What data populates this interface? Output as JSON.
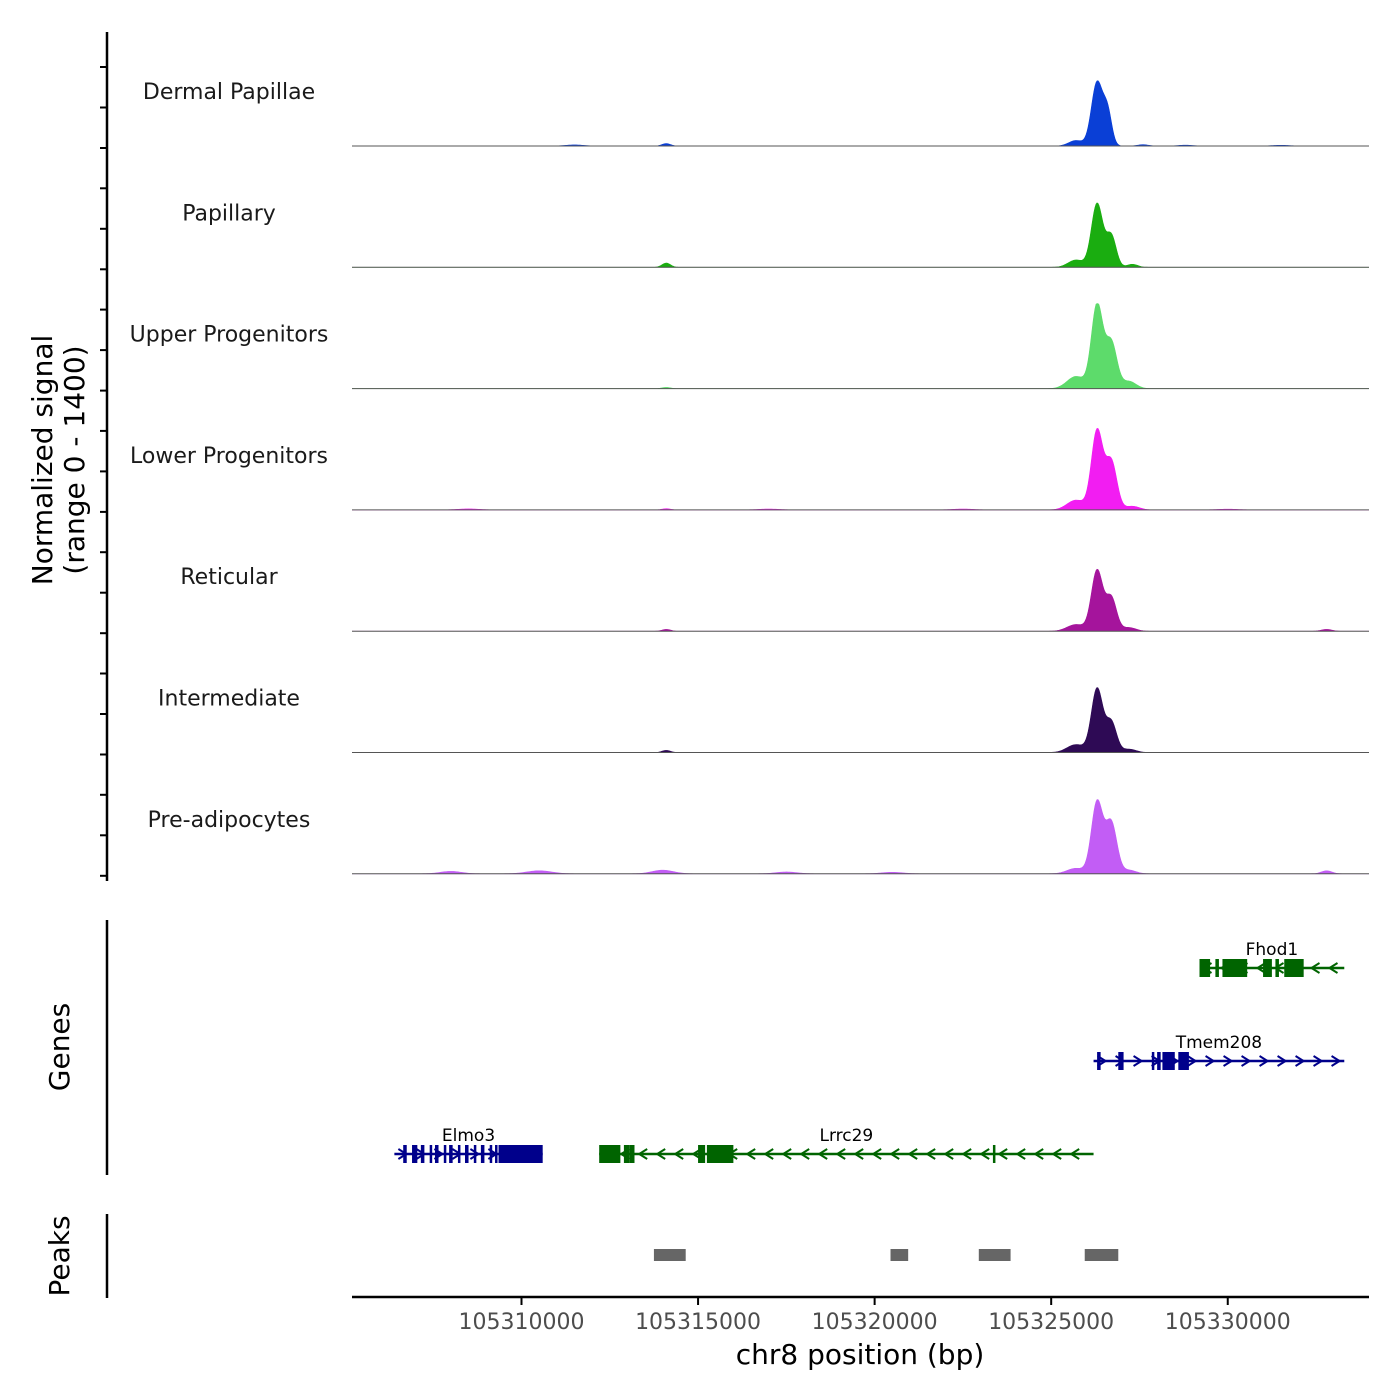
{
  "chart_data": {
    "type": "area",
    "title": "",
    "xlabel": "chr8 position (bp)",
    "xlim": [
      105305200,
      105334000
    ],
    "x_ticks": [
      105310000,
      105315000,
      105320000,
      105325000,
      105330000
    ],
    "x_tick_labels": [
      "105310000",
      "105315000",
      "105320000",
      "105325000",
      "105330000"
    ],
    "coverage": {
      "ylabel_line1": "Normalized signal",
      "ylabel_line2": "(range 0 - 1400)",
      "ylim": [
        0,
        1400
      ],
      "tracks": [
        {
          "name": "Dermal Papillae",
          "color": "#0a3fd6",
          "peaks": [
            [
              105326300,
              1050,
              160
            ],
            [
              105326600,
              520,
              120
            ],
            [
              105325700,
              90,
              200
            ],
            [
              105314100,
              40,
              120
            ],
            [
              105311500,
              18,
              250
            ],
            [
              105327600,
              22,
              150
            ],
            [
              105328800,
              14,
              200
            ],
            [
              105331500,
              12,
              250
            ]
          ]
        },
        {
          "name": "Papillary",
          "color": "#1aad10",
          "peaks": [
            [
              105326300,
              1050,
              160
            ],
            [
              105326700,
              520,
              140
            ],
            [
              105325700,
              120,
              220
            ],
            [
              105327300,
              50,
              150
            ],
            [
              105314100,
              70,
              120
            ]
          ]
        },
        {
          "name": "Upper Progenitors",
          "color": "#5ddb6b",
          "peaks": [
            [
              105326300,
              1380,
              160
            ],
            [
              105326700,
              760,
              160
            ],
            [
              105325700,
              200,
              250
            ],
            [
              105327200,
              120,
              200
            ],
            [
              105314100,
              20,
              120
            ]
          ]
        },
        {
          "name": "Lower Progenitors",
          "color": "#f21df2",
          "peaks": [
            [
              105326300,
              1300,
              160
            ],
            [
              105326700,
              800,
              160
            ],
            [
              105325700,
              160,
              250
            ],
            [
              105327300,
              60,
              200
            ],
            [
              105314100,
              20,
              120
            ],
            [
              105308500,
              16,
              300
            ],
            [
              105317000,
              14,
              300
            ],
            [
              105322500,
              14,
              300
            ],
            [
              105330000,
              12,
              300
            ]
          ]
        },
        {
          "name": "Reticular",
          "color": "#a5149c",
          "peaks": [
            [
              105326300,
              1000,
              160
            ],
            [
              105326700,
              550,
              150
            ],
            [
              105325700,
              110,
              250
            ],
            [
              105327200,
              60,
              200
            ],
            [
              105314100,
              30,
              120
            ],
            [
              105332800,
              30,
              150
            ]
          ]
        },
        {
          "name": "Intermediate",
          "color": "#2e0a55",
          "peaks": [
            [
              105326300,
              1050,
              160
            ],
            [
              105326700,
              500,
              150
            ],
            [
              105325700,
              130,
              250
            ],
            [
              105327200,
              55,
              200
            ],
            [
              105314100,
              35,
              120
            ]
          ]
        },
        {
          "name": "Pre-adipocytes",
          "color": "#c25df5",
          "peaks": [
            [
              105326300,
              1180,
              160
            ],
            [
              105326700,
              840,
              160
            ],
            [
              105325700,
              90,
              250
            ],
            [
              105327200,
              60,
              200
            ],
            [
              105310500,
              50,
              350
            ],
            [
              105308000,
              40,
              300
            ],
            [
              105314000,
              60,
              300
            ],
            [
              105317500,
              30,
              300
            ],
            [
              105320500,
              25,
              300
            ],
            [
              105332800,
              50,
              150
            ]
          ]
        }
      ]
    },
    "genes": {
      "label": "Genes",
      "items": [
        {
          "name": "Fhod1",
          "row": 0,
          "strand": "-",
          "color": "#006400",
          "start": 105329200,
          "end": 105333300,
          "exons": [
            [
              105329200,
              105329500
            ],
            [
              105329650,
              105329750
            ],
            [
              105329850,
              105330550
            ],
            [
              105331000,
              105331250
            ],
            [
              105331350,
              105331450
            ],
            [
              105331600,
              105332150
            ]
          ]
        },
        {
          "name": "Tmem208",
          "row": 1,
          "strand": "+",
          "color": "#00008b",
          "start": 105326200,
          "end": 105333300,
          "exons": [
            [
              105326300,
              105326400
            ],
            [
              105326900,
              105327050
            ],
            [
              105327850,
              105327900
            ],
            [
              105328000,
              105328100
            ],
            [
              105328150,
              105328500
            ],
            [
              105328600,
              105328900
            ]
          ]
        },
        {
          "name": "Elmo3",
          "row": 2,
          "strand": "+",
          "color": "#00008b",
          "start": 105306400,
          "end": 105310600,
          "exons": [
            [
              105306650,
              105306750
            ],
            [
              105306900,
              105307050
            ],
            [
              105307150,
              105307250
            ],
            [
              105307400,
              105307450
            ],
            [
              105307550,
              105307650
            ],
            [
              105307800,
              105307850
            ],
            [
              105307950,
              105308050
            ],
            [
              105308200,
              105308250
            ],
            [
              105308400,
              105308500
            ],
            [
              105308650,
              105308700
            ],
            [
              105308850,
              105308950
            ],
            [
              105309100,
              105309150
            ],
            [
              105309250,
              105309300
            ],
            [
              105309350,
              105310600
            ]
          ]
        },
        {
          "name": "Lrrc29",
          "row": 2,
          "strand": "-",
          "color": "#006400",
          "start": 105312200,
          "end": 105326200,
          "exons": [
            [
              105312200,
              105312800
            ],
            [
              105312900,
              105313050
            ],
            [
              105313050,
              105313200
            ],
            [
              105315000,
              105315200
            ],
            [
              105315250,
              105316000
            ],
            [
              105323350,
              105323400
            ]
          ]
        }
      ]
    },
    "peaks": {
      "label": "Peaks",
      "color": "#666666",
      "regions": [
        [
          105313750,
          105314650
        ],
        [
          105320450,
          105320950
        ],
        [
          105322950,
          105323850
        ],
        [
          105325950,
          105326900
        ]
      ]
    }
  }
}
